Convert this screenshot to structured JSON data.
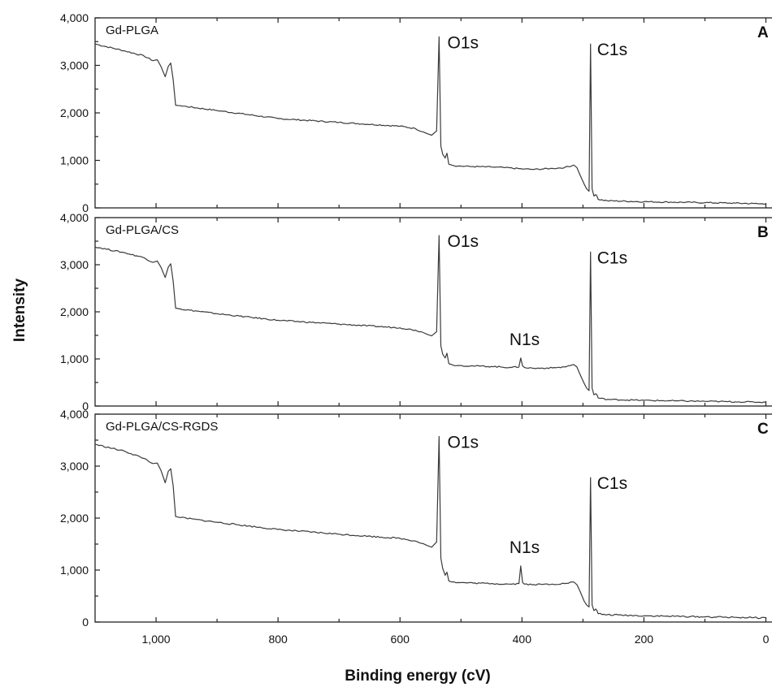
{
  "chart_data": {
    "type": "line",
    "xlabel": "Binding energy (cV)",
    "ylabel": "Intensity",
    "xlim": [
      1100,
      -10
    ],
    "x_reversed": true,
    "ylim": [
      0,
      4000
    ],
    "grid": false,
    "x_ticks": [
      1000,
      800,
      600,
      400,
      200,
      0
    ],
    "x_tick_labels": [
      "1,000",
      "800",
      "600",
      "400",
      "200",
      "0"
    ],
    "y_ticks": [
      0,
      1000,
      2000,
      3000,
      4000
    ],
    "y_tick_labels": [
      "0",
      "1,000",
      "2,000",
      "3,000",
      "4,000"
    ],
    "panels": [
      {
        "letter": "A",
        "title": "Gd-PLGA",
        "series": {
          "x": [
            1100,
            1050,
            1020,
            1005,
            998,
            992,
            985,
            980,
            976,
            972,
            968,
            960,
            900,
            800,
            700,
            600,
            575,
            562,
            555,
            548,
            540,
            536,
            533,
            530,
            526,
            523,
            520,
            515,
            505,
            480,
            450,
            430,
            400,
            380,
            350,
            330,
            315,
            310,
            305,
            298,
            294,
            290,
            287.5,
            285,
            282,
            279,
            277,
            275,
            260,
            200,
            150,
            100,
            50,
            20,
            0
          ],
          "y": [
            3450,
            3300,
            3200,
            3100,
            3120,
            2980,
            2760,
            2980,
            3050,
            2700,
            2160,
            2150,
            2050,
            1880,
            1800,
            1720,
            1670,
            1600,
            1560,
            1530,
            1620,
            3600,
            1300,
            1130,
            1050,
            1150,
            920,
            900,
            880,
            870,
            860,
            850,
            820,
            810,
            830,
            850,
            900,
            850,
            700,
            500,
            400,
            350,
            3450,
            400,
            250,
            280,
            250,
            180,
            150,
            130,
            120,
            110,
            100,
            90,
            80
          ]
        },
        "peaks": [
          {
            "label": "O1s",
            "x": 533,
            "y": 3600
          },
          {
            "label": "C1s",
            "x": 287.5,
            "y": 3450
          }
        ]
      },
      {
        "letter": "B",
        "title": "Gd-PLGA/CS",
        "series": {
          "x": [
            1100,
            1050,
            1020,
            1005,
            998,
            992,
            985,
            980,
            976,
            972,
            968,
            960,
            900,
            800,
            700,
            600,
            575,
            562,
            555,
            548,
            540,
            536,
            533,
            530,
            526,
            523,
            520,
            515,
            505,
            480,
            450,
            420,
            405,
            402,
            399,
            396,
            380,
            350,
            330,
            315,
            310,
            305,
            298,
            294,
            290,
            287.5,
            285,
            282,
            279,
            277,
            275,
            260,
            200,
            150,
            100,
            50,
            20,
            0
          ],
          "y": [
            3380,
            3250,
            3150,
            3050,
            3080,
            2950,
            2730,
            2950,
            3020,
            2650,
            2080,
            2060,
            1960,
            1820,
            1740,
            1660,
            1610,
            1560,
            1520,
            1490,
            1580,
            3620,
            1280,
            1100,
            1020,
            1120,
            900,
            880,
            860,
            850,
            840,
            820,
            830,
            1020,
            850,
            820,
            800,
            810,
            830,
            880,
            830,
            680,
            480,
            380,
            330,
            3270,
            380,
            240,
            260,
            240,
            170,
            140,
            120,
            110,
            100,
            90,
            85,
            80
          ]
        },
        "peaks": [
          {
            "label": "O1s",
            "x": 533,
            "y": 3620
          },
          {
            "label": "N1s",
            "x": 402,
            "y": 1020
          },
          {
            "label": "C1s",
            "x": 287.5,
            "y": 3270
          }
        ]
      },
      {
        "letter": "C",
        "title": "Gd-PLGA/CS-RGDS",
        "series": {
          "x": [
            1100,
            1050,
            1020,
            1005,
            998,
            992,
            985,
            980,
            976,
            972,
            968,
            960,
            900,
            800,
            700,
            600,
            575,
            562,
            555,
            548,
            540,
            536,
            533,
            530,
            526,
            523,
            520,
            515,
            505,
            480,
            450,
            420,
            405,
            402,
            399,
            396,
            380,
            350,
            330,
            315,
            310,
            305,
            298,
            294,
            290,
            287.5,
            285,
            282,
            279,
            277,
            275,
            260,
            200,
            150,
            100,
            50,
            20,
            0
          ],
          "y": [
            3420,
            3280,
            3150,
            3050,
            3060,
            2920,
            2680,
            2900,
            2950,
            2620,
            2030,
            2010,
            1920,
            1780,
            1690,
            1610,
            1560,
            1510,
            1470,
            1440,
            1540,
            3570,
            1230,
            1030,
            900,
            960,
            790,
            770,
            760,
            750,
            740,
            730,
            740,
            1080,
            760,
            730,
            720,
            730,
            740,
            770,
            720,
            600,
            400,
            330,
            290,
            2780,
            330,
            220,
            250,
            220,
            160,
            140,
            120,
            110,
            100,
            90,
            85,
            80
          ]
        },
        "peaks": [
          {
            "label": "O1s",
            "x": 533,
            "y": 3570
          },
          {
            "label": "N1s",
            "x": 402,
            "y": 1080
          },
          {
            "label": "C1s",
            "x": 287.5,
            "y": 2780
          }
        ]
      }
    ]
  }
}
